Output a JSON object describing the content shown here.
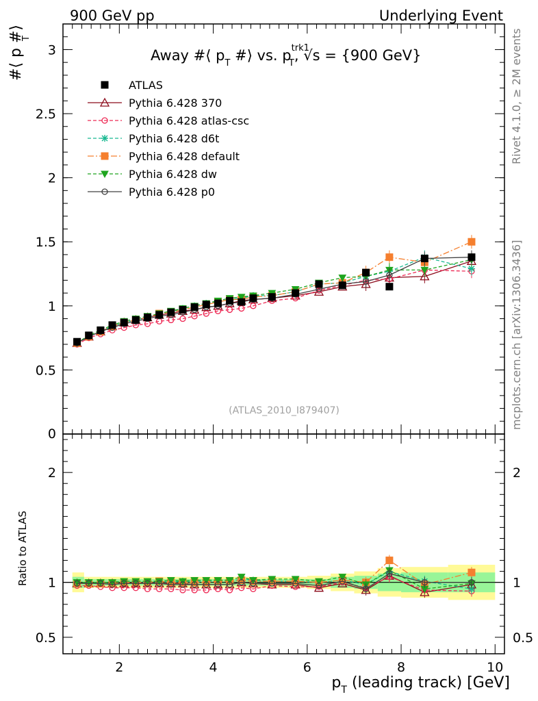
{
  "header": {
    "left": "900 GeV pp",
    "right": "Underlying Event"
  },
  "side_labels": {
    "rivet": "Rivet 4.1.0, ≥ 2M events",
    "mcplots": "mcplots.cern.ch [arXiv:1306.3436]"
  },
  "watermark": "(ATLAS_2010_I879407)",
  "chart_data": [
    {
      "type": "scatter",
      "title_parts": {
        "away": "Away #⟨ p",
        "t1": "T",
        "mid": " #⟩ vs. p",
        "sup": "trk1",
        "t2": "T",
        "sqrt": "√s",
        "end": " = {900 GeV}"
      },
      "ylabel": "#⟨ p  #⟩",
      "ylabel_sub": "T",
      "ylim": [
        0,
        3.2
      ],
      "xlim": [
        0.8,
        10.2
      ],
      "y_ticks": [
        "0.5",
        "1",
        "1.5",
        "2",
        "2.5",
        "3"
      ],
      "y_tick_values": [
        0.5,
        1,
        1.5,
        2,
        2.5,
        3
      ],
      "y_zero_label": "0",
      "x": [
        1.1,
        1.35,
        1.6,
        1.85,
        2.1,
        2.35,
        2.6,
        2.85,
        3.1,
        3.35,
        3.6,
        3.85,
        4.1,
        4.35,
        4.6,
        4.85,
        5.25,
        5.75,
        6.25,
        6.75,
        7.25,
        7.75,
        8.5,
        9.5
      ],
      "series": [
        {
          "name": "ATLAS",
          "color": "#000000",
          "marker": "filled-square",
          "values": [
            0.72,
            0.77,
            0.81,
            0.85,
            0.87,
            0.89,
            0.91,
            0.93,
            0.95,
            0.97,
            0.99,
            1.01,
            1.02,
            1.04,
            1.03,
            1.06,
            1.07,
            1.1,
            1.17,
            1.16,
            1.26,
            1.15,
            1.37,
            1.38
          ]
        },
        {
          "name": "Pythia 6.428 370",
          "color": "#8b0a1a",
          "marker": "open-triangle",
          "values": [
            0.71,
            0.76,
            0.8,
            0.84,
            0.87,
            0.89,
            0.91,
            0.93,
            0.94,
            0.96,
            0.97,
            0.99,
            1.0,
            1.02,
            1.04,
            1.05,
            1.06,
            1.08,
            1.11,
            1.15,
            1.17,
            1.22,
            1.23,
            1.35
          ]
        },
        {
          "name": "Pythia 6.428 atlas-csc",
          "color": "#ee2a55",
          "marker": "open-circle",
          "values": [
            0.7,
            0.75,
            0.78,
            0.81,
            0.83,
            0.85,
            0.86,
            0.88,
            0.89,
            0.9,
            0.92,
            0.94,
            0.96,
            0.97,
            0.98,
            1.0,
            1.04,
            1.06,
            1.12,
            1.16,
            1.2,
            1.21,
            1.28,
            1.27
          ]
        },
        {
          "name": "Pythia 6.428 d6t",
          "color": "#17b890",
          "marker": "star",
          "values": [
            0.71,
            0.76,
            0.8,
            0.84,
            0.87,
            0.89,
            0.91,
            0.94,
            0.95,
            0.98,
            1.0,
            1.02,
            1.03,
            1.05,
            1.06,
            1.08,
            1.08,
            1.11,
            1.17,
            1.18,
            1.23,
            1.27,
            1.38,
            1.29
          ]
        },
        {
          "name": "Pythia 6.428 default",
          "color": "#f57f2e",
          "marker": "filled-square",
          "values": [
            0.71,
            0.76,
            0.8,
            0.84,
            0.87,
            0.89,
            0.91,
            0.94,
            0.95,
            0.97,
            0.99,
            1.01,
            1.03,
            1.05,
            1.05,
            1.07,
            1.08,
            1.11,
            1.17,
            1.18,
            1.26,
            1.38,
            1.34,
            1.5
          ]
        },
        {
          "name": "Pythia 6.428 dw",
          "color": "#1fa51f",
          "marker": "filled-triangle-down",
          "values": [
            0.71,
            0.77,
            0.81,
            0.85,
            0.88,
            0.9,
            0.92,
            0.94,
            0.96,
            0.98,
            1.0,
            1.02,
            1.04,
            1.06,
            1.07,
            1.08,
            1.1,
            1.13,
            1.18,
            1.22,
            1.23,
            1.28,
            1.28,
            1.36
          ]
        },
        {
          "name": "Pythia 6.428 p0",
          "color": "#404040",
          "marker": "open-circle",
          "values": [
            0.71,
            0.76,
            0.8,
            0.83,
            0.86,
            0.88,
            0.9,
            0.92,
            0.93,
            0.95,
            0.97,
            0.99,
            1.0,
            1.02,
            1.03,
            1.05,
            1.06,
            1.09,
            1.13,
            1.17,
            1.19,
            1.24,
            1.37,
            1.38
          ]
        }
      ]
    },
    {
      "type": "scatter",
      "ylabel": "Ratio to ATLAS",
      "xlabel": "p",
      "xlabel_sub": "T",
      "xlabel_rest": " (leading track) [GeV]",
      "ylim": [
        0.35,
        2.35
      ],
      "xlim": [
        0.8,
        10.2
      ],
      "x_ticks": [
        "2",
        "4",
        "6",
        "8",
        "10"
      ],
      "x_tick_values": [
        2,
        4,
        6,
        8,
        10
      ],
      "y_ticks": [
        "0.5",
        "1",
        "2"
      ],
      "y_tick_values": [
        0.5,
        1,
        2
      ],
      "bin_edges": [
        1.0,
        1.25,
        1.5,
        1.75,
        2.0,
        2.25,
        2.5,
        2.75,
        3.0,
        3.25,
        3.5,
        3.75,
        4.0,
        4.25,
        4.5,
        4.75,
        5.0,
        5.5,
        6.0,
        6.5,
        7.0,
        7.5,
        8.0,
        9.0,
        10.0
      ],
      "band_stat": [
        0.05,
        0.03,
        0.03,
        0.03,
        0.03,
        0.03,
        0.03,
        0.03,
        0.03,
        0.03,
        0.03,
        0.03,
        0.03,
        0.03,
        0.03,
        0.03,
        0.03,
        0.03,
        0.03,
        0.05,
        0.06,
        0.08,
        0.09,
        0.09
      ],
      "band_total": [
        0.09,
        0.05,
        0.05,
        0.05,
        0.05,
        0.05,
        0.05,
        0.05,
        0.05,
        0.05,
        0.05,
        0.05,
        0.05,
        0.05,
        0.05,
        0.05,
        0.05,
        0.05,
        0.06,
        0.08,
        0.1,
        0.13,
        0.14,
        0.16
      ],
      "x": [
        1.1,
        1.35,
        1.6,
        1.85,
        2.1,
        2.35,
        2.6,
        2.85,
        3.1,
        3.35,
        3.6,
        3.85,
        4.1,
        4.35,
        4.6,
        4.85,
        5.25,
        5.75,
        6.25,
        6.75,
        7.25,
        7.75,
        8.5,
        9.5
      ],
      "series": [
        {
          "name": "Pythia 6.428 370",
          "color": "#8b0a1a",
          "marker": "open-triangle",
          "values": [
            0.99,
            0.99,
            0.99,
            0.99,
            0.99,
            0.99,
            0.99,
            0.99,
            0.99,
            0.99,
            0.98,
            0.98,
            0.98,
            0.98,
            1.0,
            0.99,
            0.98,
            0.98,
            0.95,
            0.99,
            0.93,
            1.06,
            0.91,
            0.98
          ]
        },
        {
          "name": "Pythia 6.428 atlas-csc",
          "color": "#ee2a55",
          "marker": "open-circle",
          "values": [
            0.97,
            0.97,
            0.96,
            0.95,
            0.95,
            0.95,
            0.94,
            0.94,
            0.94,
            0.93,
            0.93,
            0.93,
            0.94,
            0.93,
            0.95,
            0.94,
            0.97,
            0.96,
            0.96,
            1.0,
            0.95,
            1.05,
            0.93,
            0.92
          ]
        },
        {
          "name": "Pythia 6.428 d6t",
          "color": "#17b890",
          "marker": "star",
          "values": [
            0.99,
            0.99,
            0.99,
            0.99,
            1.0,
            1.0,
            1.0,
            1.01,
            1.0,
            1.01,
            1.01,
            1.01,
            1.01,
            1.01,
            1.03,
            1.02,
            1.01,
            1.01,
            1.0,
            1.02,
            0.98,
            1.1,
            1.01,
            0.94
          ]
        },
        {
          "name": "Pythia 6.428 default",
          "color": "#f57f2e",
          "marker": "filled-square",
          "values": [
            0.99,
            0.99,
            0.99,
            0.99,
            1.0,
            1.0,
            1.0,
            1.01,
            1.0,
            1.0,
            1.0,
            1.0,
            1.01,
            1.01,
            1.02,
            1.01,
            1.01,
            1.01,
            1.0,
            1.02,
            1.0,
            1.2,
            0.98,
            1.09
          ]
        },
        {
          "name": "Pythia 6.428 dw",
          "color": "#1fa51f",
          "marker": "filled-triangle-down",
          "values": [
            1.0,
            1.0,
            1.0,
            1.0,
            1.01,
            1.01,
            1.01,
            1.01,
            1.02,
            1.01,
            1.02,
            1.02,
            1.02,
            1.02,
            1.05,
            1.02,
            1.03,
            1.03,
            1.01,
            1.05,
            0.98,
            1.11,
            0.94,
            0.99
          ]
        },
        {
          "name": "Pythia 6.428 p0",
          "color": "#404040",
          "marker": "open-circle",
          "values": [
            0.99,
            0.99,
            0.99,
            0.98,
            0.99,
            0.99,
            0.99,
            0.99,
            0.98,
            0.98,
            0.98,
            0.98,
            0.98,
            0.98,
            1.0,
            0.99,
            0.99,
            0.99,
            0.97,
            1.01,
            0.94,
            1.08,
            1.0,
            1.0
          ]
        }
      ]
    }
  ]
}
